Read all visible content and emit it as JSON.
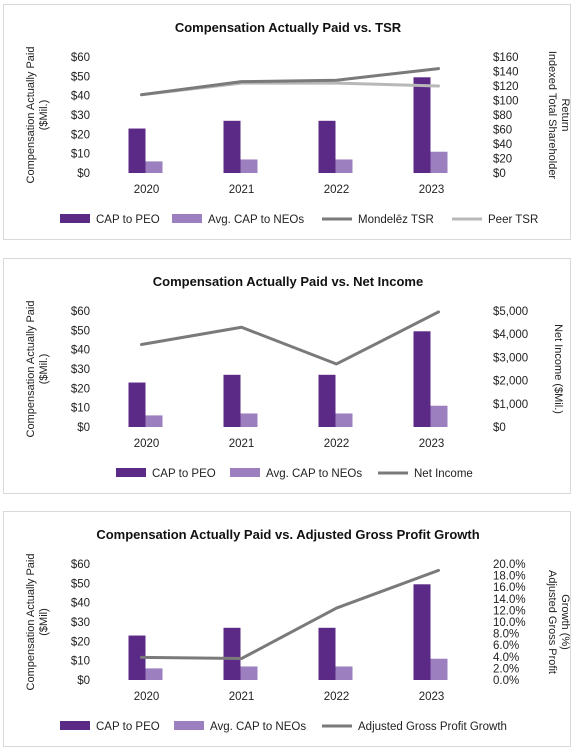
{
  "colors": {
    "cap_peo": "#5b2a86",
    "avg_cap_neos": "#9b7fbf",
    "company_line": "#7a7a7a",
    "peer_line": "#b8b8b8"
  },
  "chart_data": [
    {
      "type": "bar",
      "title": "Compensation Actually Paid vs. TSR",
      "categories": [
        "2020",
        "2021",
        "2022",
        "2023"
      ],
      "ylabel": [
        "Compensation Actually Paid",
        "($Mil.)"
      ],
      "y2label": [
        "Indexed Total Shareholder",
        "Return"
      ],
      "ylim": [
        0,
        60
      ],
      "yticks": [
        "$60",
        "$50",
        "$40",
        "$30",
        "$20",
        "$10",
        "$0"
      ],
      "y2lim": [
        0,
        160
      ],
      "y2ticks": [
        "$160",
        "$140",
        "$120",
        "$100",
        "$80",
        "$60",
        "$40",
        "$20",
        "$0"
      ],
      "bar_series": [
        {
          "name": "CAP to PEO",
          "values": [
            23,
            27,
            27,
            49.5
          ]
        },
        {
          "name": "Avg. CAP to NEOs",
          "values": [
            6,
            7,
            7,
            11
          ]
        }
      ],
      "line_series": [
        {
          "name": "Mondelēz  TSR",
          "values": [
            108,
            126,
            128,
            144
          ]
        },
        {
          "name": "Peer TSR",
          "values": [
            108,
            124,
            124,
            120
          ]
        }
      ],
      "legend": "bottom"
    },
    {
      "type": "bar",
      "title": "Compensation Actually Paid vs. Net Income",
      "categories": [
        "2020",
        "2021",
        "2022",
        "2023"
      ],
      "ylabel": [
        "Compensation Actually Paid",
        "($Mil.)"
      ],
      "y2label": [
        "Net Income ($Mil.)"
      ],
      "ylim": [
        0,
        60
      ],
      "yticks": [
        "$60",
        "$50",
        "$40",
        "$30",
        "$20",
        "$10",
        "$0"
      ],
      "y2lim": [
        0,
        5000
      ],
      "y2ticks": [
        "$5,000",
        "$4,000",
        "$3,000",
        "$2,000",
        "$1,000",
        "$0"
      ],
      "bar_series": [
        {
          "name": "CAP to PEO",
          "values": [
            23,
            27,
            27,
            49.5
          ]
        },
        {
          "name": "Avg. CAP to NEOs",
          "values": [
            6,
            7,
            7,
            11
          ]
        }
      ],
      "line_series": [
        {
          "name": "Net Income",
          "values": [
            3555,
            4300,
            2717,
            4959
          ]
        }
      ],
      "legend": "bottom"
    },
    {
      "type": "bar",
      "title": "Compensation Actually Paid vs. Adjusted Gross Profit Growth",
      "categories": [
        "2020",
        "2021",
        "2022",
        "2023"
      ],
      "ylabel": [
        "Compensation Actually Paid",
        "($Mil)"
      ],
      "y2label": [
        "Adjusted Gross Profit",
        "Growth (%)"
      ],
      "ylim": [
        0,
        60
      ],
      "yticks": [
        "$60",
        "$50",
        "$40",
        "$30",
        "$20",
        "$10",
        "$0"
      ],
      "y2lim": [
        0,
        20
      ],
      "y2ticks": [
        "20.0%",
        "18.0%",
        "16.0%",
        "14.0%",
        "12.0%",
        "10.0%",
        "8.0%",
        "6.0%",
        "4.0%",
        "2.0%",
        "0.0%"
      ],
      "bar_series": [
        {
          "name": "CAP to PEO",
          "values": [
            23,
            27,
            27,
            49.5
          ]
        },
        {
          "name": "Avg. CAP to NEOs",
          "values": [
            6,
            7,
            7,
            11
          ]
        }
      ],
      "line_series": [
        {
          "name": "Adjusted Gross Profit Growth",
          "values": [
            3.9,
            3.7,
            12.4,
            18.9
          ]
        }
      ],
      "legend": "bottom"
    }
  ]
}
